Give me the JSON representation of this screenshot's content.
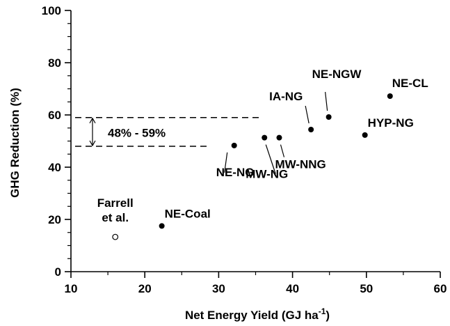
{
  "chart_data": {
    "type": "scatter",
    "xlabel": "Net Energy Yield (GJ ha",
    "xlabel_sup": "-1",
    "xlabel_suffix": ")",
    "ylabel": "GHG Reduction (%)",
    "xlim": [
      10,
      60
    ],
    "ylim": [
      0,
      100
    ],
    "x_ticks": [
      10,
      20,
      30,
      40,
      50,
      60
    ],
    "y_ticks": [
      0,
      20,
      40,
      60,
      80,
      100
    ],
    "grid": false,
    "points": [
      {
        "label": "NE-Coal",
        "x": 22.3,
        "y": 17.5,
        "marker": "filled"
      },
      {
        "label": "NE-NG",
        "x": 32.1,
        "y": 48.3,
        "marker": "filled"
      },
      {
        "label": "MW-NG",
        "x": 36.2,
        "y": 51.3,
        "marker": "filled"
      },
      {
        "label": "MW-NNG",
        "x": 38.2,
        "y": 51.3,
        "marker": "filled"
      },
      {
        "label": "IA-NG",
        "x": 42.5,
        "y": 54.4,
        "marker": "filled"
      },
      {
        "label": "NE-NGW",
        "x": 44.9,
        "y": 59.2,
        "marker": "filled"
      },
      {
        "label": "HYP-NG",
        "x": 49.8,
        "y": 52.3,
        "marker": "filled"
      },
      {
        "label": "NE-CL",
        "x": 53.2,
        "y": 67.2,
        "marker": "filled"
      },
      {
        "label": "Farrell\net al.",
        "x": 16.0,
        "y": 13.3,
        "marker": "open"
      }
    ],
    "range_annotation": {
      "text": "48% - 59%",
      "low": 48,
      "high": 59
    }
  }
}
